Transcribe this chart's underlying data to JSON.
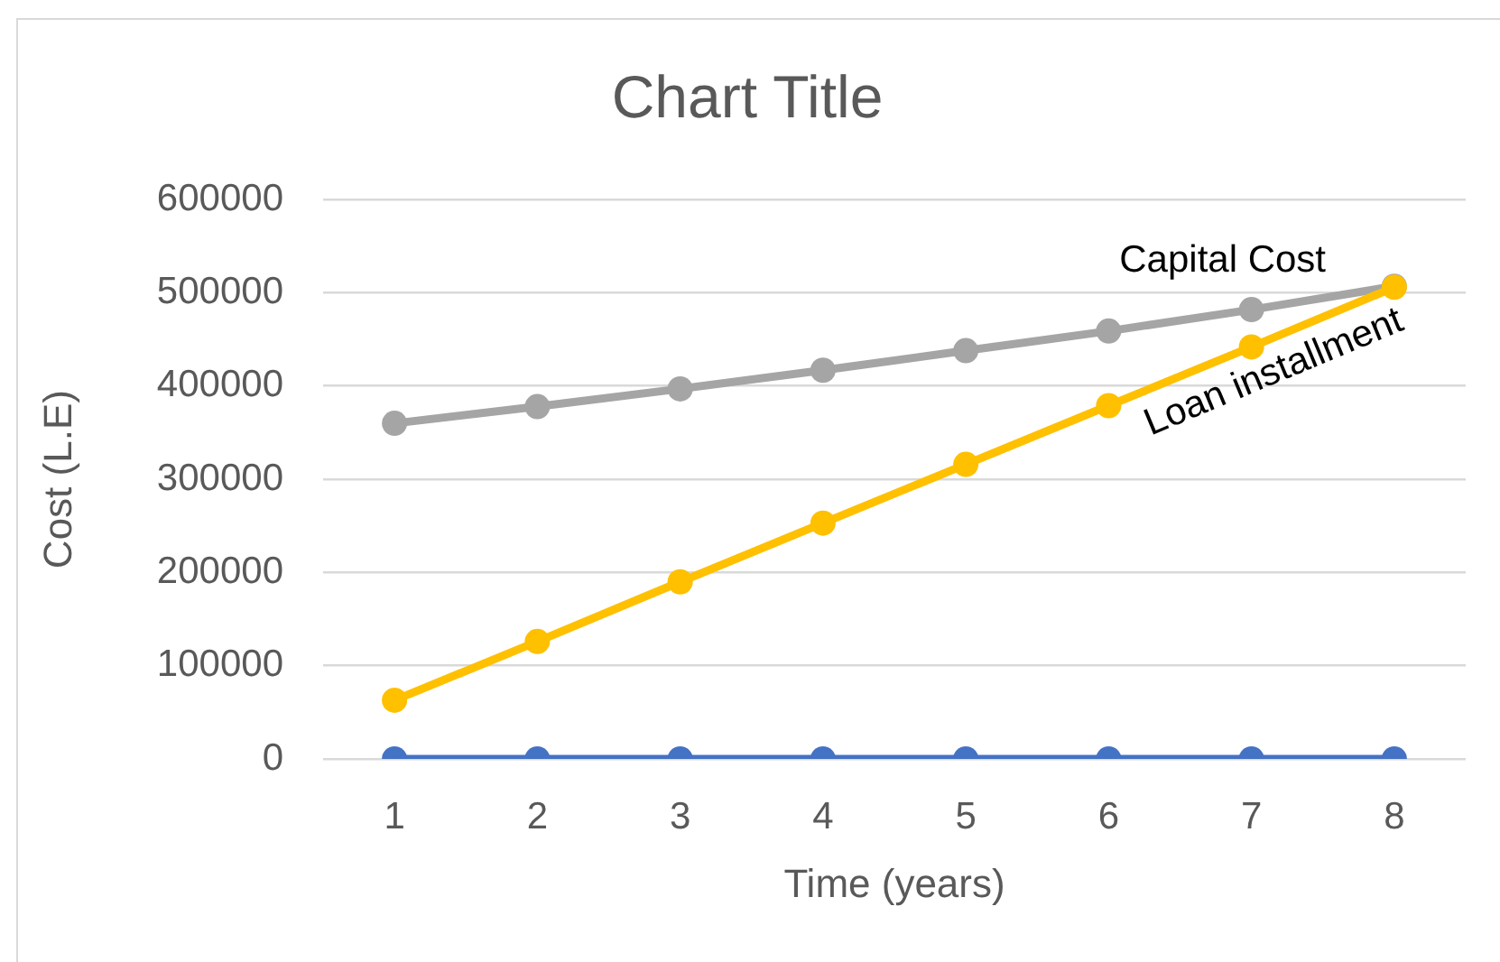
{
  "chart_data": {
    "type": "line",
    "title": "Chart Title",
    "xlabel": "Time (years)",
    "ylabel": "Cost (L.E)",
    "categories": [
      "1",
      "2",
      "3",
      "4",
      "5",
      "6",
      "7",
      "8"
    ],
    "series": [
      {
        "color": "#4472c4",
        "values": [
          0,
          0,
          0,
          0,
          0,
          0,
          0,
          0
        ]
      },
      {
        "name": "Capital Cost",
        "color": "#a5a5a5",
        "values": [
          360000,
          378000,
          397000,
          417000,
          438000,
          459000,
          482000,
          507000
        ]
      },
      {
        "name": "Loan installment",
        "color": "#ffc000",
        "values": [
          63000,
          126000,
          190000,
          253000,
          316000,
          379000,
          442000,
          506000
        ]
      }
    ],
    "ylim": [
      0,
      600000
    ],
    "yticks": [
      0,
      100000,
      200000,
      300000,
      400000,
      500000,
      600000
    ],
    "grid": "y",
    "legend": false,
    "marker": "circle",
    "line_style": "solid"
  }
}
